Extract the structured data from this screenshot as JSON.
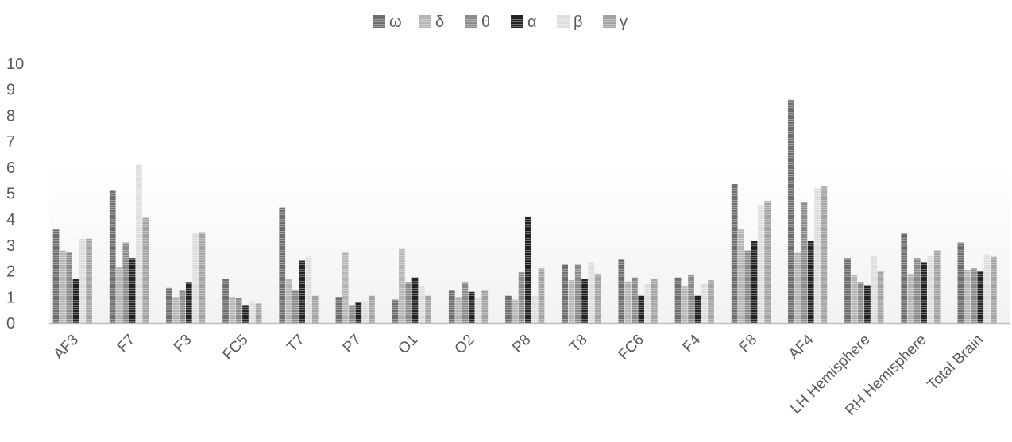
{
  "chart_data": {
    "type": "bar",
    "title": "",
    "xlabel": "",
    "ylabel": "",
    "ylim": [
      0,
      10
    ],
    "yticks": [
      0,
      1,
      2,
      3,
      4,
      5,
      6,
      7,
      8,
      9,
      10
    ],
    "grid": false,
    "legend_position": "top-center",
    "categories": [
      "AF3",
      "F7",
      "F3",
      "FC5",
      "T7",
      "P7",
      "O1",
      "O2",
      "P8",
      "T8",
      "FC6",
      "F4",
      "F8",
      "AF4",
      "LH Hemisphere",
      "RH Hemisphere",
      "Total Brain"
    ],
    "series": [
      {
        "name": "ω",
        "color": "#6d6d6d",
        "values": [
          3.6,
          5.1,
          1.35,
          1.7,
          4.45,
          1.0,
          0.9,
          1.25,
          1.05,
          2.25,
          2.45,
          1.75,
          5.35,
          8.6,
          2.5,
          3.45,
          3.1
        ]
      },
      {
        "name": "δ",
        "color": "#b5b5b5",
        "values": [
          2.8,
          2.15,
          1.0,
          1.0,
          1.7,
          2.75,
          2.85,
          1.0,
          0.9,
          1.65,
          1.6,
          1.4,
          3.6,
          2.7,
          1.85,
          1.9,
          2.05
        ]
      },
      {
        "name": "θ",
        "color": "#8a8a8a",
        "values": [
          2.75,
          3.1,
          1.25,
          0.95,
          1.25,
          0.7,
          1.55,
          1.55,
          1.95,
          2.25,
          1.75,
          1.85,
          2.8,
          4.65,
          1.55,
          2.5,
          2.1
        ]
      },
      {
        "name": "α",
        "color": "#222222",
        "values": [
          1.7,
          2.5,
          1.55,
          0.7,
          2.4,
          0.8,
          1.75,
          1.2,
          4.1,
          1.7,
          1.05,
          1.05,
          3.15,
          3.15,
          1.45,
          2.35,
          2.0
        ]
      },
      {
        "name": "β",
        "color": "#dedede",
        "values": [
          3.25,
          6.1,
          3.45,
          0.85,
          2.55,
          0.85,
          1.4,
          0.95,
          1.05,
          2.35,
          1.5,
          1.5,
          4.55,
          5.2,
          2.6,
          2.6,
          2.65
        ]
      },
      {
        "name": "γ",
        "color": "#a3a3a3",
        "values": [
          3.25,
          4.05,
          3.5,
          0.75,
          1.05,
          1.05,
          1.05,
          1.25,
          2.1,
          1.9,
          1.7,
          1.65,
          4.7,
          5.25,
          2.0,
          2.8,
          2.55
        ]
      }
    ]
  }
}
